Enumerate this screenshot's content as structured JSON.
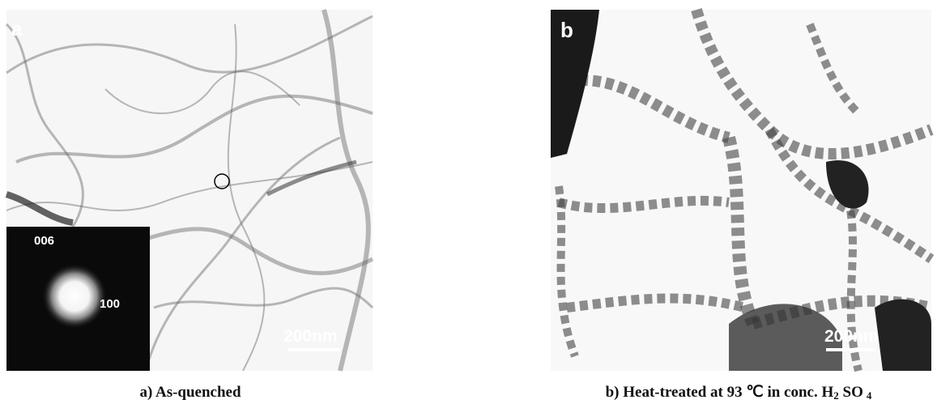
{
  "panels": [
    {
      "label": "a",
      "inset_labels": [
        "006",
        "100"
      ],
      "scale_bar": "200nm",
      "caption": [
        "a) As-quenched"
      ]
    },
    {
      "label": "b",
      "scale_bar": "200nm",
      "caption": [
        "b) Heat-treated at 93 ℃  in conc. H",
        "2",
        " SO",
        "4"
      ]
    }
  ]
}
